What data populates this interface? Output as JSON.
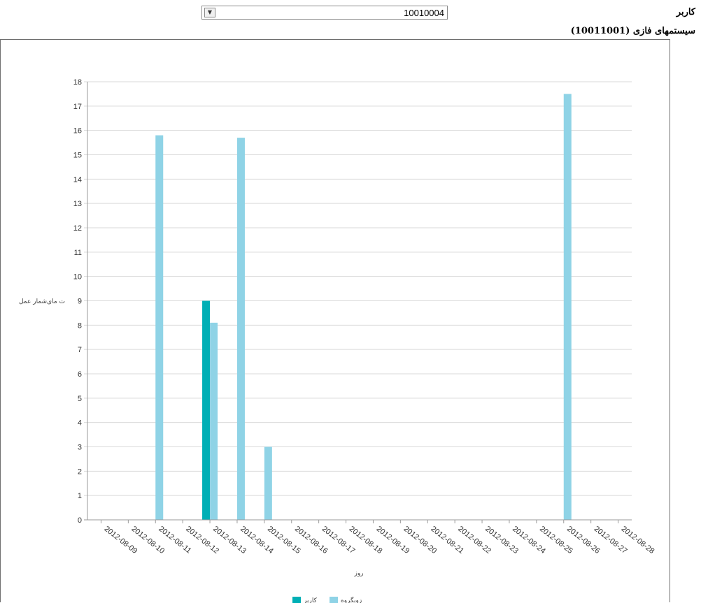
{
  "header": {
    "user_label": "کاربر",
    "user_select": {
      "value": "10010004"
    },
    "section_title": "سیستمهای فازی (10011001)"
  },
  "colors": {
    "series_user": "#00afb5",
    "series_group": "#8fd3e6",
    "grid": "#d9d9d9",
    "axis": "#9a9a9a"
  },
  "chart_data": {
    "type": "bar",
    "categories": [
      "2012-08-09",
      "2012-08-10",
      "2012-08-11",
      "2012-08-12",
      "2012-08-13",
      "2012-08-14",
      "2012-08-15",
      "2012-08-16",
      "2012-08-17",
      "2012-08-18",
      "2012-08-19",
      "2012-08-20",
      "2012-08-21",
      "2012-08-22",
      "2012-08-23",
      "2012-08-24",
      "2012-08-25",
      "2012-08-26",
      "2012-08-27",
      "2012-08-28"
    ],
    "series": [
      {
        "name": "کاربر",
        "values": [
          0,
          0,
          0,
          0,
          9,
          0,
          0,
          0,
          0,
          0,
          0,
          0,
          0,
          0,
          0,
          0,
          0,
          0,
          0,
          0
        ]
      },
      {
        "name": "زوبگروه",
        "values": [
          0,
          0,
          15.8,
          0,
          8.1,
          15.7,
          3,
          0,
          0,
          0,
          0,
          0,
          0,
          0,
          0,
          0,
          0,
          17.5,
          0,
          0
        ]
      }
    ],
    "ylim": [
      0,
      18
    ],
    "yticks": [
      0,
      1,
      2,
      3,
      4,
      5,
      6,
      7,
      8,
      9,
      10,
      11,
      12,
      13,
      14,
      15,
      16,
      17,
      18
    ],
    "xlabel": "روز",
    "ylabel": "ت مای‌شمار عمل",
    "legend_position": "bottom-center",
    "grid": true
  }
}
